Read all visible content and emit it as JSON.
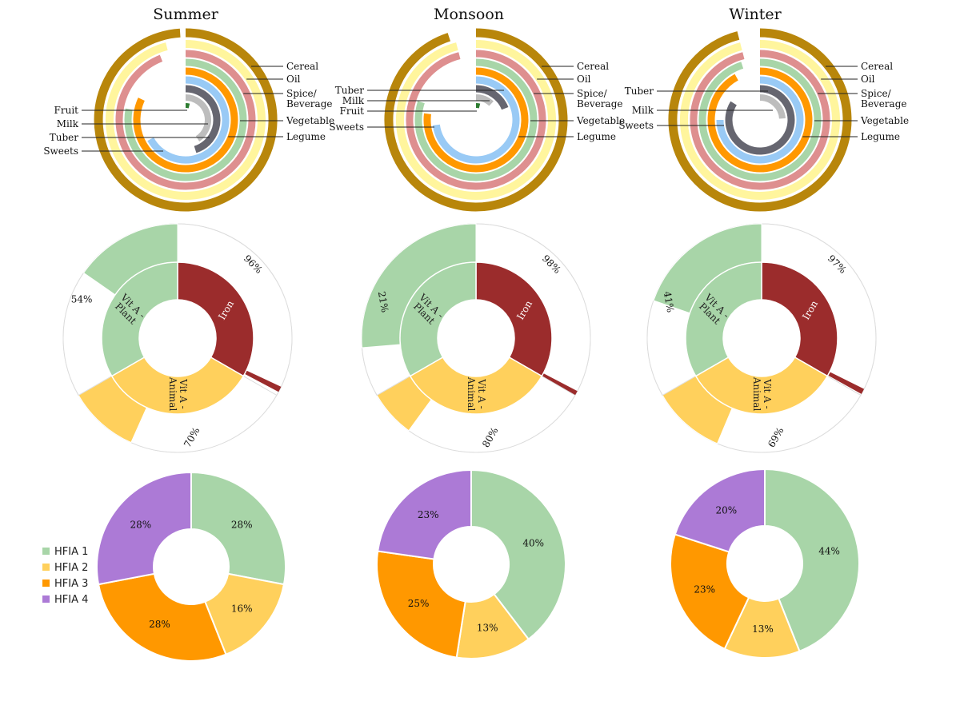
{
  "chart_data": [
    {
      "type": "radial_bar",
      "title": "Summer",
      "categories": [
        "Cereal",
        "Oil",
        "Spice/ Beverage",
        "Vegetable",
        "Legume",
        "Sweets",
        "Tuber",
        "Milk",
        "Fruit"
      ],
      "values": [
        99,
        96,
        94,
        78,
        82,
        67,
        45,
        41,
        4
      ],
      "unit": "%"
    },
    {
      "type": "radial_bar",
      "title": "Monsoon",
      "categories": [
        "Cereal",
        "Oil",
        "Spice/ Beverage",
        "Vegetable",
        "Legume",
        "Sweets",
        "Tuber",
        "Milk",
        "Fruit"
      ],
      "values": [
        95,
        96,
        96,
        80,
        77,
        73,
        19,
        12,
        4
      ],
      "unit": "%"
    },
    {
      "type": "radial_bar",
      "title": "Winter",
      "categories": [
        "Cereal",
        "Oil",
        "Spice/ Beverage",
        "Vegetable",
        "Legume",
        "Sweets",
        "Tuber",
        "Milk"
      ],
      "values": [
        96,
        96,
        96,
        95,
        92,
        75,
        84,
        24
      ],
      "unit": "%"
    },
    {
      "type": "nested_donut",
      "inner": {
        "categories": [
          "Iron",
          "Vit A - Animal",
          "Vit A - Plant"
        ],
        "values": [
          33.3,
          33.3,
          33.3
        ]
      },
      "outer": {
        "labels": [
          "96%",
          "70%",
          "54%"
        ],
        "values": [
          96,
          70,
          54
        ]
      }
    },
    {
      "type": "nested_donut",
      "inner": {
        "categories": [
          "Iron",
          "Vit A - Animal",
          "Vit A - Plant"
        ],
        "values": [
          33.3,
          33.3,
          33.3
        ]
      },
      "outer": {
        "labels": [
          "98%",
          "80%",
          "21%"
        ],
        "values": [
          98,
          80,
          21
        ]
      }
    },
    {
      "type": "nested_donut",
      "inner": {
        "categories": [
          "Iron",
          "Vit A - Animal",
          "Vit A - Plant"
        ],
        "values": [
          33.3,
          33.3,
          33.3
        ]
      },
      "outer": {
        "labels": [
          "97%",
          "69%",
          "41%"
        ],
        "values": [
          97,
          69,
          41
        ]
      }
    },
    {
      "type": "pie",
      "categories": [
        "HFIA 1",
        "HFIA 2",
        "HFIA 3",
        "HFIA 4"
      ],
      "values": [
        28,
        16,
        28,
        28
      ],
      "labels": [
        "28%",
        "16%",
        "28%",
        "28%"
      ]
    },
    {
      "type": "pie",
      "categories": [
        "HFIA 1",
        "HFIA 2",
        "HFIA 3",
        "HFIA 4"
      ],
      "values": [
        40,
        13,
        25,
        23
      ],
      "labels": [
        "40%",
        "13%",
        "25%",
        "23%"
      ]
    },
    {
      "type": "pie",
      "categories": [
        "HFIA 1",
        "HFIA 2",
        "HFIA 3",
        "HFIA 4"
      ],
      "values": [
        44,
        13,
        23,
        20
      ],
      "labels": [
        "44%",
        "13%",
        "23%",
        "20%"
      ]
    }
  ],
  "legend": {
    "entries": [
      "HFIA 1",
      "HFIA 2",
      "HFIA 3",
      "HFIA 4"
    ],
    "placement": "left"
  },
  "colors": {
    "food": {
      "Cereal": "#b8860b",
      "Oil": "#fff59d",
      "Spice/ Beverage": "#de8f8f",
      "Vegetable": "#a8d5a8",
      "Legume": "#ff9800",
      "Sweets": "#99caf5",
      "Tuber": "#666670",
      "Milk": "#bdbdbd",
      "Fruit": "#2e7d32"
    },
    "nutrient": {
      "Iron": "#9b2c2c",
      "Vit A - Animal": "#ffd05c",
      "Vit A - Plant": "#a8d5a8"
    },
    "hfia": {
      "HFIA 1": "#a8d5a8",
      "HFIA 2": "#ffd05c",
      "HFIA 3": "#ff9800",
      "HFIA 4": "#ac7ad6"
    }
  }
}
